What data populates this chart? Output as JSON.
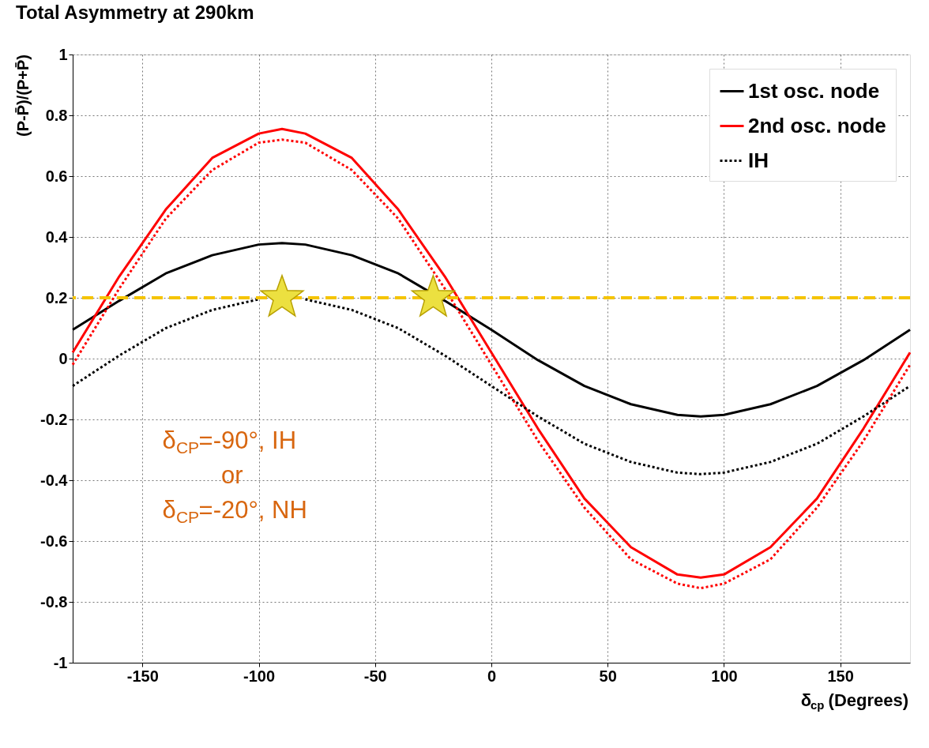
{
  "chart_data": {
    "type": "line",
    "title": "Total Asymmetry at 290km",
    "xlabel": "δ$_{cp}$ (Degrees)",
    "ylabel": "(P-P̄)/(P+P̄)",
    "x": [
      -180,
      -160,
      -140,
      -120,
      -100,
      -90,
      -80,
      -60,
      -40,
      -20,
      0,
      20,
      40,
      60,
      80,
      90,
      100,
      120,
      140,
      160,
      180
    ],
    "series": [
      {
        "name": "1st osc. node",
        "color": "#000000",
        "line_style": "solid",
        "values": [
          0.095,
          0.19,
          0.28,
          0.34,
          0.375,
          0.38,
          0.375,
          0.34,
          0.28,
          0.19,
          0.095,
          -0.005,
          -0.09,
          -0.15,
          -0.185,
          -0.19,
          -0.185,
          -0.15,
          -0.09,
          -0.005,
          0.095
        ]
      },
      {
        "name": "2nd osc. node",
        "color": "#ff0000",
        "line_style": "solid",
        "values": [
          0.02,
          0.27,
          0.49,
          0.66,
          0.74,
          0.755,
          0.74,
          0.66,
          0.49,
          0.27,
          0.02,
          -0.23,
          -0.46,
          -0.62,
          -0.71,
          -0.72,
          -0.71,
          -0.62,
          -0.46,
          -0.23,
          0.02
        ]
      },
      {
        "name": "IH",
        "color": "#000000",
        "line_style": "dotted",
        "values": [
          -0.09,
          0.01,
          0.1,
          0.16,
          0.195,
          null,
          0.195,
          0.16,
          0.1,
          0.01,
          -0.09,
          -0.19,
          -0.28,
          -0.34,
          -0.375,
          -0.38,
          -0.375,
          -0.34,
          -0.28,
          -0.19,
          -0.09
        ]
      },
      {
        "color": "#ff0000",
        "line_style": "dotted",
        "values": [
          -0.02,
          0.23,
          0.46,
          0.62,
          0.71,
          0.72,
          0.71,
          0.62,
          0.46,
          0.23,
          -0.02,
          -0.27,
          -0.49,
          -0.66,
          -0.74,
          -0.755,
          -0.74,
          -0.66,
          -0.49,
          -0.27,
          -0.02
        ]
      },
      {
        "type": "scatter",
        "marker": "star",
        "color": "#ece040",
        "x": [
          -90,
          -25
        ],
        "values": [
          0.2,
          0.2
        ]
      }
    ],
    "ref_lines": [
      {
        "axis": "y",
        "value": 0.2,
        "color": "#f5c400",
        "line_style": "dashed"
      }
    ],
    "annotations": [
      "δ$_{CP}$=-90°, IH\nor\nδ$_{CP}$=-20°, NH"
    ],
    "xlim": [
      -180,
      180
    ],
    "xticks": [
      -150,
      -100,
      -50,
      0,
      50,
      100,
      150
    ],
    "ylim": [
      -1,
      1
    ],
    "yticks": [
      -1,
      -0.8,
      -0.6,
      -0.4,
      -0.2,
      0,
      0.2,
      0.4,
      0.6,
      0.8,
      1
    ],
    "grid": true,
    "legend": "top right"
  }
}
